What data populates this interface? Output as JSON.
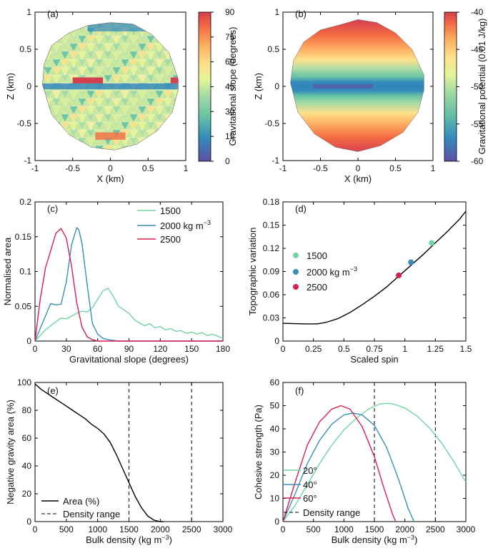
{
  "panels": {
    "a": {
      "label": "(a)",
      "xlabel": "X (km)",
      "ylabel": "Z (km)",
      "cbar_label": "Gravitational slope (degrees)"
    },
    "b": {
      "label": "(b)",
      "xlabel": "X (km)",
      "ylabel": "Z (km)",
      "cbar_label": "Gravitational potential (0.01 J/kg)"
    },
    "c": {
      "label": "(c)"
    },
    "d": {
      "label": "(d)"
    },
    "e": {
      "label": "(e)"
    },
    "f": {
      "label": "(f)"
    }
  },
  "colors": {
    "green": "#6fd4a0",
    "blue": "#3a8fb7",
    "red": "#d6204e",
    "black": "#000000"
  },
  "chart_data": [
    {
      "id": "a",
      "type": "heatmap",
      "title": "",
      "xlabel": "X (km)",
      "ylabel": "Z (km)",
      "xlim": [
        -1,
        1
      ],
      "ylim": [
        -1,
        1
      ],
      "xticks": [
        "-1",
        "-0.5",
        "0",
        "0.5",
        "1"
      ],
      "xtick_vals": [
        -1,
        -0.5,
        0,
        0.5,
        1
      ],
      "yticks": [
        "-1",
        "-0.5",
        "0",
        "0.5",
        "1"
      ],
      "ytick_vals": [
        -1,
        -0.5,
        0,
        0.5,
        1
      ],
      "colorbar": {
        "label": "Gravitational slope (degrees)",
        "range": [
          0,
          90
        ],
        "ticks": [
          "0",
          "15",
          "30",
          "45",
          "60",
          "75",
          "90"
        ]
      },
      "outline": [
        [
          -0.9,
          0.02
        ],
        [
          -0.88,
          0.3
        ],
        [
          -0.78,
          0.55
        ],
        [
          -0.55,
          0.72
        ],
        [
          -0.3,
          0.82
        ],
        [
          0.0,
          0.86
        ],
        [
          0.3,
          0.84
        ],
        [
          0.55,
          0.7
        ],
        [
          0.78,
          0.45
        ],
        [
          0.9,
          0.1
        ],
        [
          0.9,
          -0.05
        ],
        [
          0.82,
          -0.35
        ],
        [
          0.62,
          -0.6
        ],
        [
          0.35,
          -0.78
        ],
        [
          0.05,
          -0.86
        ],
        [
          -0.25,
          -0.82
        ],
        [
          -0.55,
          -0.65
        ],
        [
          -0.78,
          -0.38
        ]
      ]
    },
    {
      "id": "b",
      "type": "heatmap",
      "title": "",
      "xlabel": "X (km)",
      "ylabel": "Z (km)",
      "xlim": [
        -1,
        1
      ],
      "ylim": [
        -1,
        1
      ],
      "xticks": [
        "-1",
        "-0.5",
        "0",
        "0.5",
        "1"
      ],
      "xtick_vals": [
        -1,
        -0.5,
        0,
        0.5,
        1
      ],
      "yticks": [
        "-1",
        "-0.5",
        "0",
        "0.5",
        "1"
      ],
      "ytick_vals": [
        -1,
        -0.5,
        0,
        0.5,
        1
      ],
      "colorbar": {
        "label": "Gravitational potential (0.01 J/kg)",
        "range": [
          -60,
          -40
        ],
        "ticks": [
          "-60",
          "-55",
          "-50",
          "-45",
          "-40"
        ]
      },
      "outline": [
        [
          -0.9,
          0.05
        ],
        [
          -0.86,
          0.35
        ],
        [
          -0.72,
          0.6
        ],
        [
          -0.5,
          0.76
        ],
        [
          -0.2,
          0.84
        ],
        [
          0.0,
          0.9
        ],
        [
          0.25,
          0.86
        ],
        [
          0.5,
          0.72
        ],
        [
          0.72,
          0.5
        ],
        [
          0.88,
          0.15
        ],
        [
          0.88,
          -0.05
        ],
        [
          0.8,
          -0.35
        ],
        [
          0.6,
          -0.62
        ],
        [
          0.3,
          -0.8
        ],
        [
          0.0,
          -0.88
        ],
        [
          -0.3,
          -0.82
        ],
        [
          -0.58,
          -0.64
        ],
        [
          -0.8,
          -0.35
        ]
      ]
    },
    {
      "id": "c",
      "type": "line",
      "xlabel": "Gravitational slope (degrees)",
      "ylabel": "Normalised area",
      "xlim": [
        0,
        180
      ],
      "ylim": [
        0,
        0.2
      ],
      "xticks": [
        "0",
        "30",
        "60",
        "90",
        "120",
        "150",
        "180"
      ],
      "xtick_vals": [
        0,
        30,
        60,
        90,
        120,
        150,
        180
      ],
      "yticks": [
        "0",
        "0.05",
        "0.1",
        "0.15",
        "0.2"
      ],
      "ytick_vals": [
        0,
        0.05,
        0.1,
        0.15,
        0.2
      ],
      "legend": {
        "position": "top-right",
        "entries": [
          "1500",
          "2000 kg m",
          "2500"
        ],
        "superscript": "−3"
      },
      "series": [
        {
          "name": "1500",
          "color": "#6fd4a0",
          "x": [
            0,
            5,
            10,
            15,
            20,
            25,
            30,
            35,
            40,
            45,
            50,
            55,
            60,
            65,
            70,
            75,
            80,
            85,
            90,
            95,
            100,
            105,
            110,
            115,
            120,
            125,
            130,
            135,
            140,
            145,
            150,
            155,
            160,
            165,
            170,
            175,
            180
          ],
          "y": [
            0,
            0.008,
            0.016,
            0.022,
            0.028,
            0.033,
            0.032,
            0.036,
            0.04,
            0.043,
            0.042,
            0.048,
            0.06,
            0.072,
            0.076,
            0.064,
            0.05,
            0.045,
            0.04,
            0.031,
            0.026,
            0.022,
            0.025,
            0.019,
            0.021,
            0.016,
            0.018,
            0.014,
            0.015,
            0.011,
            0.013,
            0.01,
            0.012,
            0.008,
            0.01,
            0.007,
            0.004
          ]
        },
        {
          "name": "2000 kg m−3",
          "color": "#3a8fb7",
          "x": [
            0,
            5,
            10,
            15,
            20,
            25,
            30,
            35,
            40,
            42,
            45,
            50,
            55,
            60,
            65,
            70,
            80,
            90,
            100,
            110,
            120,
            130,
            140,
            150,
            160,
            170,
            180
          ],
          "y": [
            0,
            0.018,
            0.036,
            0.054,
            0.052,
            0.053,
            0.085,
            0.138,
            0.163,
            0.16,
            0.14,
            0.08,
            0.025,
            0.01,
            0.004,
            0.002,
            0,
            0,
            0,
            0,
            0,
            0,
            0,
            0,
            0,
            0,
            0
          ]
        },
        {
          "name": "2500",
          "color": "#d6204e",
          "x": [
            0,
            5,
            10,
            15,
            20,
            25,
            30,
            35,
            40,
            45,
            50,
            55,
            60,
            70,
            80,
            90,
            100,
            120,
            140,
            160,
            180
          ],
          "y": [
            0,
            0.06,
            0.105,
            0.13,
            0.155,
            0.162,
            0.148,
            0.108,
            0.055,
            0.02,
            0.006,
            0.002,
            0,
            0,
            0,
            0,
            0,
            0,
            0,
            0,
            0
          ]
        }
      ]
    },
    {
      "id": "d",
      "type": "line",
      "xlabel": "Scaled spin",
      "ylabel": "Topographic variation",
      "xlim": [
        0,
        1.5
      ],
      "ylim": [
        0,
        0.18
      ],
      "xticks": [
        "0",
        "0.25",
        "0.5",
        "0.75",
        "1",
        "1.25",
        "1.5"
      ],
      "xtick_vals": [
        0,
        0.25,
        0.5,
        0.75,
        1,
        1.25,
        1.5
      ],
      "yticks": [
        "0",
        "0.03",
        "0.06",
        "0.09",
        "0.12",
        "0.15",
        "0.18"
      ],
      "ytick_vals": [
        0,
        0.03,
        0.06,
        0.09,
        0.12,
        0.15,
        0.18
      ],
      "legend": {
        "position": "middle-left",
        "entries": [
          "1500",
          "2000 kg m",
          "2500"
        ],
        "superscript": "−3"
      },
      "series": [
        {
          "name": "curve",
          "color": "#000000",
          "x": [
            0,
            0.1,
            0.2,
            0.28,
            0.35,
            0.45,
            0.55,
            0.65,
            0.75,
            0.85,
            0.95,
            1.05,
            1.15,
            1.25,
            1.35,
            1.45,
            1.5
          ],
          "y": [
            0.023,
            0.0225,
            0.0222,
            0.0222,
            0.024,
            0.029,
            0.037,
            0.047,
            0.058,
            0.07,
            0.084,
            0.098,
            0.112,
            0.127,
            0.142,
            0.158,
            0.168
          ]
        }
      ],
      "points": [
        {
          "name": "1500",
          "color": "#6fd4a0",
          "x": 1.22,
          "y": 0.127
        },
        {
          "name": "2000 kg m−3",
          "color": "#3a8fb7",
          "x": 1.05,
          "y": 0.102
        },
        {
          "name": "2500",
          "color": "#d6204e",
          "x": 0.95,
          "y": 0.085
        }
      ]
    },
    {
      "id": "e",
      "type": "line",
      "xlabel": "Bulk density (kg m",
      "ylabel": "Negative gravity area (%)",
      "xlim": [
        0,
        3000
      ],
      "ylim": [
        0,
        100
      ],
      "xticks": [
        "0",
        "500",
        "1000",
        "1500",
        "2000",
        "2500",
        "3000"
      ],
      "xtick_vals": [
        0,
        500,
        1000,
        1500,
        2000,
        2500,
        3000
      ],
      "yticks": [
        "0",
        "20",
        "40",
        "60",
        "80",
        "100"
      ],
      "ytick_vals": [
        0,
        20,
        40,
        60,
        80,
        100
      ],
      "legend": {
        "position": "bottom-left",
        "entries": [
          "Area (%)",
          "Density range"
        ]
      },
      "series": [
        {
          "name": "Area (%)",
          "color": "#000000",
          "x": [
            0,
            100,
            200,
            300,
            400,
            500,
            600,
            700,
            800,
            900,
            1000,
            1100,
            1200,
            1300,
            1400,
            1500,
            1600,
            1700,
            1800,
            1900,
            1950,
            2000,
            2050
          ],
          "y": [
            99,
            95,
            92,
            89,
            86,
            83,
            80,
            77,
            74,
            70,
            67,
            63,
            57,
            48,
            38,
            28,
            18,
            10,
            4,
            1,
            0.5,
            0,
            0
          ]
        }
      ],
      "vlines": [
        1500,
        2500
      ]
    },
    {
      "id": "f",
      "type": "line",
      "xlabel": "Bulk density (kg m",
      "ylabel": "Cohesive strength (Pa)",
      "xlim": [
        0,
        3000
      ],
      "ylim": [
        0,
        60
      ],
      "xticks": [
        "0",
        "500",
        "1000",
        "1500",
        "2000",
        "2500",
        "3000"
      ],
      "xtick_vals": [
        0,
        500,
        1000,
        1500,
        2000,
        2500,
        3000
      ],
      "yticks": [
        "0",
        "10",
        "20",
        "30",
        "40",
        "50",
        "60"
      ],
      "ytick_vals": [
        0,
        10,
        20,
        30,
        40,
        50,
        60
      ],
      "legend": {
        "position": "bottom-left",
        "entries": [
          "20°",
          "40°",
          "60°",
          "Density range"
        ]
      },
      "series": [
        {
          "name": "20°",
          "color": "#6fd4a0",
          "x": [
            0,
            200,
            400,
            600,
            800,
            1000,
            1200,
            1400,
            1600,
            1700,
            1800,
            2000,
            2200,
            2400,
            2600,
            2800,
            3000
          ],
          "y": [
            0,
            7,
            16,
            25,
            33,
            39.5,
            44.5,
            48.5,
            50.8,
            51,
            50.8,
            49,
            45.5,
            40.5,
            34,
            26,
            17
          ]
        },
        {
          "name": "40°",
          "color": "#3a8fb7",
          "x": [
            0,
            200,
            400,
            600,
            800,
            1000,
            1150,
            1300,
            1500,
            1700,
            1900,
            2050,
            2150
          ],
          "y": [
            0,
            12,
            25,
            35,
            42,
            46,
            46.8,
            46,
            41.5,
            32,
            18,
            6,
            0
          ]
        },
        {
          "name": "60°",
          "color": "#d6204e",
          "x": [
            0,
            200,
            400,
            600,
            800,
            950,
            1100,
            1300,
            1500,
            1650,
            1800,
            1850
          ],
          "y": [
            0,
            17,
            33,
            43,
            48.5,
            50,
            48.5,
            41,
            28,
            15,
            3,
            0
          ]
        }
      ],
      "vlines": [
        1500,
        2500
      ]
    }
  ]
}
